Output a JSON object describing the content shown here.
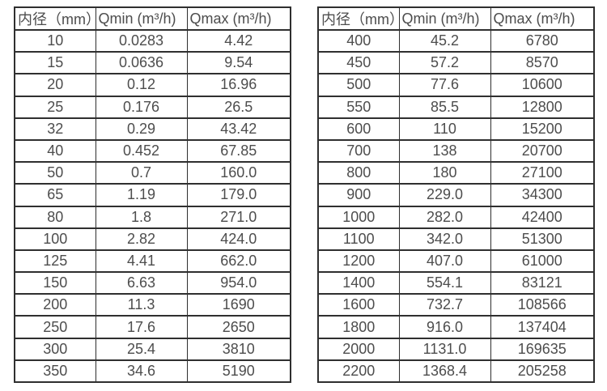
{
  "chart_data": [
    {
      "type": "table",
      "name": "flow-range-small-diameters",
      "headers": [
        "内径（mm）",
        "Qmin (m³/h)",
        "Qmax (m³/h)"
      ],
      "rows": [
        [
          "10",
          "0.0283",
          "4.42"
        ],
        [
          "15",
          "0.0636",
          "9.54"
        ],
        [
          "20",
          "0.12",
          "16.96"
        ],
        [
          "25",
          "0.176",
          "26.5"
        ],
        [
          "32",
          "0.29",
          "43.42"
        ],
        [
          "40",
          "0.452",
          "67.85"
        ],
        [
          "50",
          "0.7",
          "160.0"
        ],
        [
          "65",
          "1.19",
          "179.0"
        ],
        [
          "80",
          "1.8",
          "271.0"
        ],
        [
          "100",
          "2.82",
          "424.0"
        ],
        [
          "125",
          "4.41",
          "662.0"
        ],
        [
          "150",
          "6.63",
          "954.0"
        ],
        [
          "200",
          "11.3",
          "1690"
        ],
        [
          "250",
          "17.6",
          "2650"
        ],
        [
          "300",
          "25.4",
          "3810"
        ],
        [
          "350",
          "34.6",
          "5190"
        ]
      ]
    },
    {
      "type": "table",
      "name": "flow-range-large-diameters",
      "headers": [
        "内径（mm）",
        "Qmin (m³/h)",
        "Qmax (m³/h)"
      ],
      "rows": [
        [
          "400",
          "45.2",
          "6780"
        ],
        [
          "450",
          "57.2",
          "8570"
        ],
        [
          "500",
          "77.6",
          "10600"
        ],
        [
          "550",
          "85.5",
          "12800"
        ],
        [
          "600",
          "110",
          "15200"
        ],
        [
          "700",
          "138",
          "20700"
        ],
        [
          "800",
          "180",
          "27100"
        ],
        [
          "900",
          "229.0",
          "34300"
        ],
        [
          "1000",
          "282.0",
          "42400"
        ],
        [
          "1100",
          "342.0",
          "51300"
        ],
        [
          "1200",
          "407.0",
          "61000"
        ],
        [
          "1400",
          "554.1",
          "83121"
        ],
        [
          "1600",
          "732.7",
          "108566"
        ],
        [
          "1800",
          "916.0",
          "137404"
        ],
        [
          "2000",
          "1131.0",
          "169635"
        ],
        [
          "2200",
          "1368.4",
          "205258"
        ]
      ]
    }
  ],
  "colors": {
    "border": "#2f2f2f",
    "text": "#4d4d4d",
    "background": "#ffffff"
  }
}
